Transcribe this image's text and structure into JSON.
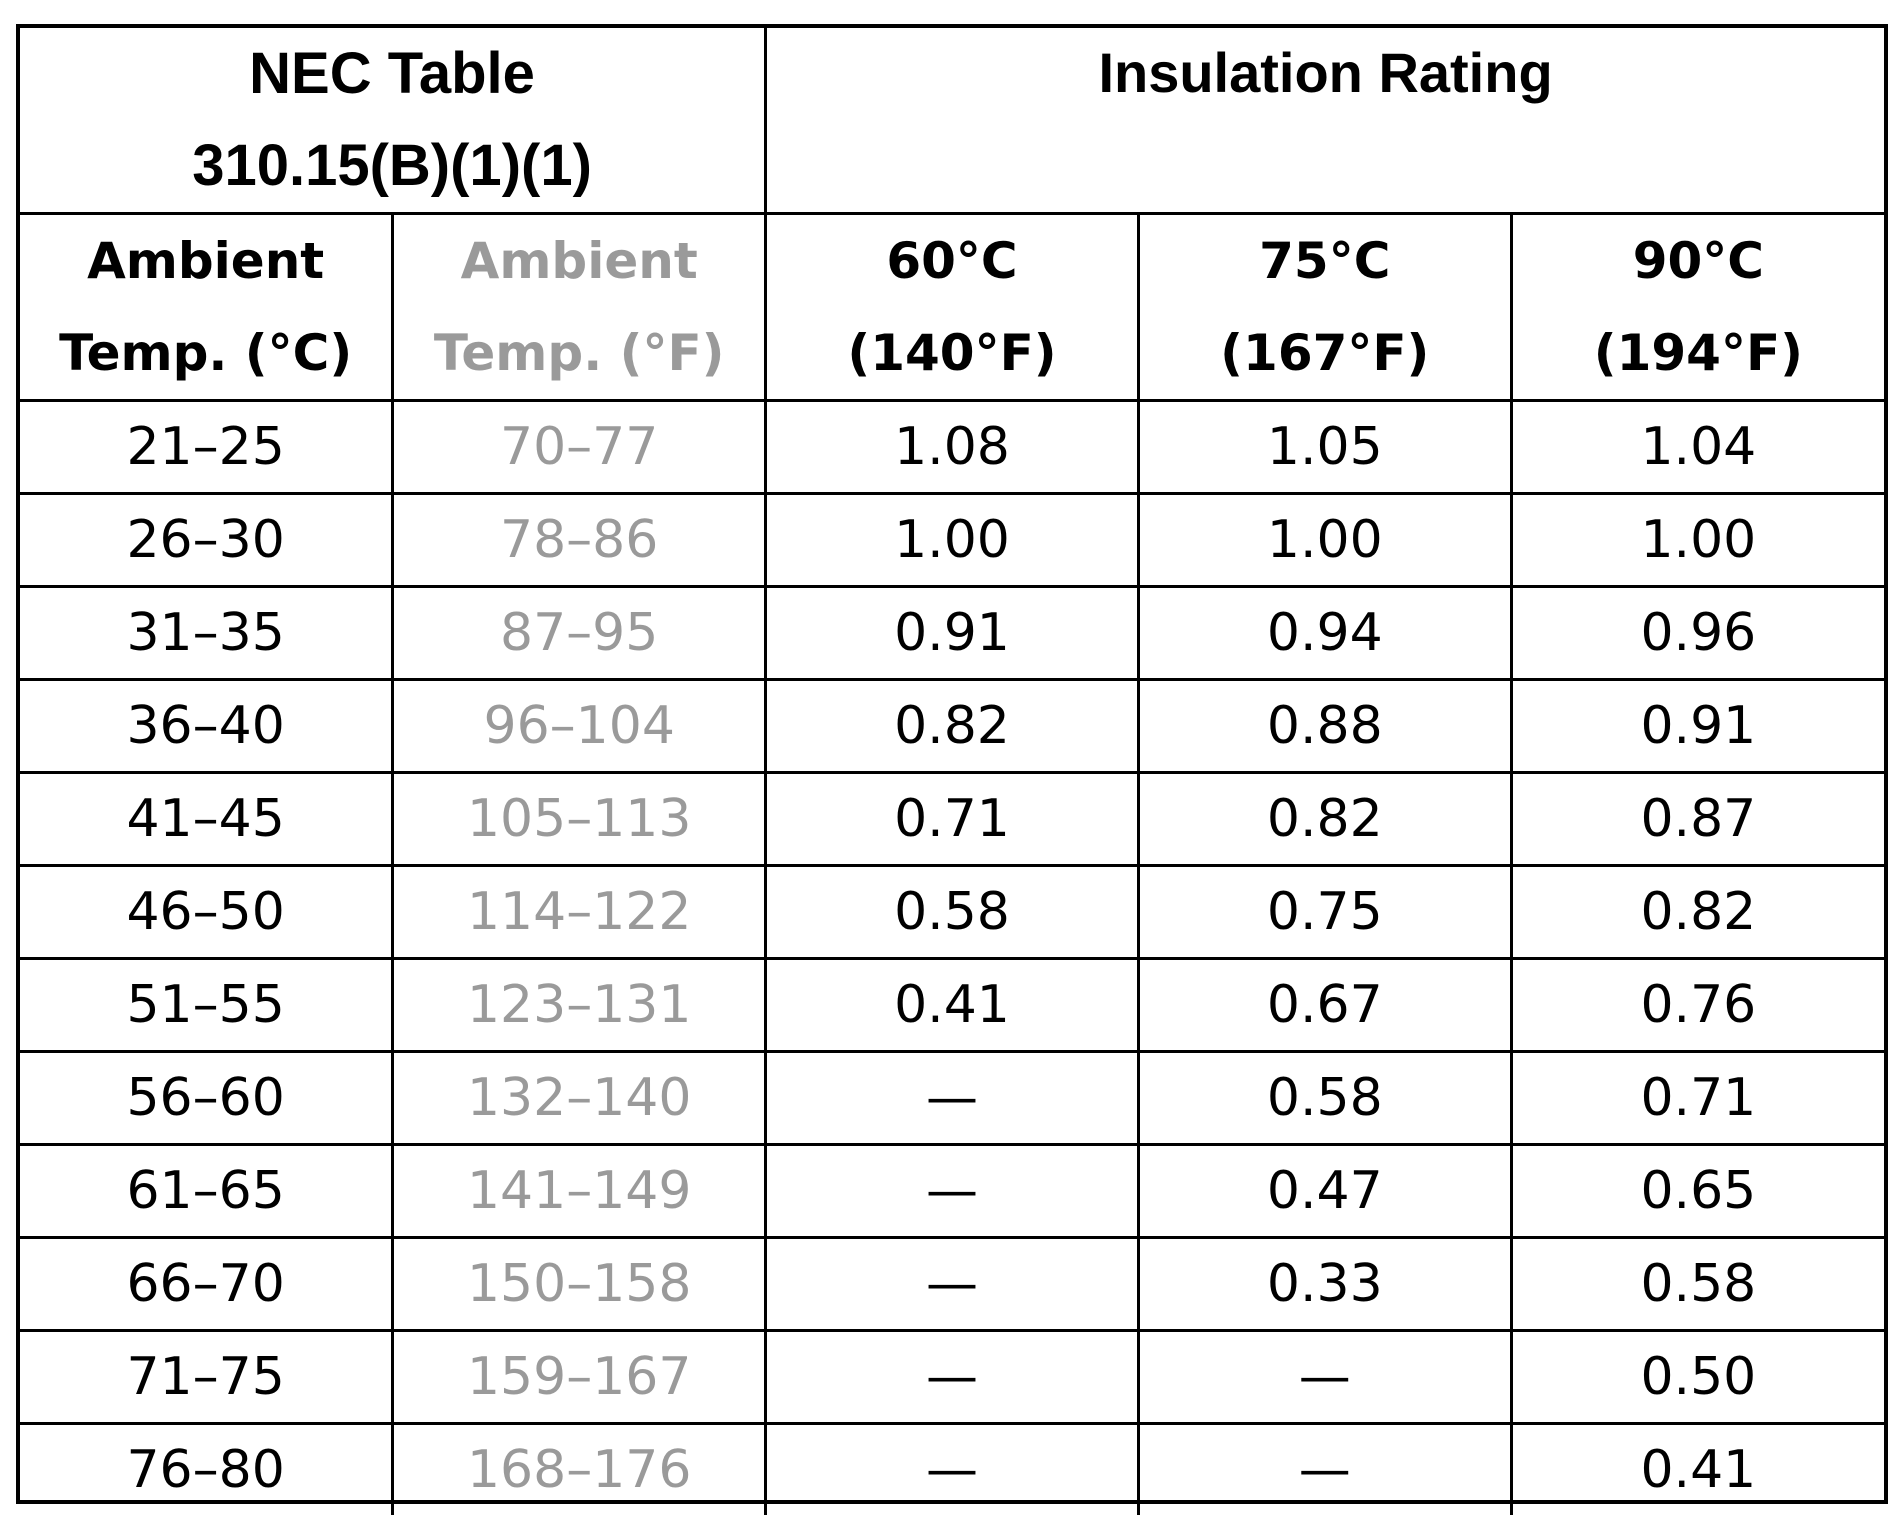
{
  "table": {
    "title_line1": "NEC Table",
    "title_line2": "310.15(B)(1)(1)",
    "rating_title": "Insulation Rating",
    "headers": [
      {
        "line1": "Ambient",
        "line2": "Temp. (°C)"
      },
      {
        "line1": "Ambient",
        "line2": "Temp. (°F)"
      },
      {
        "line1": "60°C",
        "line2": "(140°F)"
      },
      {
        "line1": "75°C",
        "line2": "(167°F)"
      },
      {
        "line1": "90°C",
        "line2": "(194°F)"
      }
    ],
    "rows": [
      [
        "21–25",
        "70–77",
        "1.08",
        "1.05",
        "1.04"
      ],
      [
        "26–30",
        "78–86",
        "1.00",
        "1.00",
        "1.00"
      ],
      [
        "31–35",
        "87–95",
        "0.91",
        "0.94",
        "0.96"
      ],
      [
        "36–40",
        "96–104",
        "0.82",
        "0.88",
        "0.91"
      ],
      [
        "41–45",
        "105–113",
        "0.71",
        "0.82",
        "0.87"
      ],
      [
        "46–50",
        "114–122",
        "0.58",
        "0.75",
        "0.82"
      ],
      [
        "51–55",
        "123–131",
        "0.41",
        "0.67",
        "0.76"
      ],
      [
        "56–60",
        "132–140",
        "—",
        "0.58",
        "0.71"
      ],
      [
        "61–65",
        "141–149",
        "—",
        "0.47",
        "0.65"
      ],
      [
        "66–70",
        "150–158",
        "—",
        "0.33",
        "0.58"
      ],
      [
        "71–75",
        "159–167",
        "—",
        "—",
        "0.50"
      ],
      [
        "76–80",
        "168–176",
        "—",
        "—",
        "0.41"
      ]
    ],
    "colors": {
      "text": "#000000",
      "fahrenheit_text": "#9a9a9a",
      "border": "#000000",
      "background": "#ffffff"
    }
  }
}
